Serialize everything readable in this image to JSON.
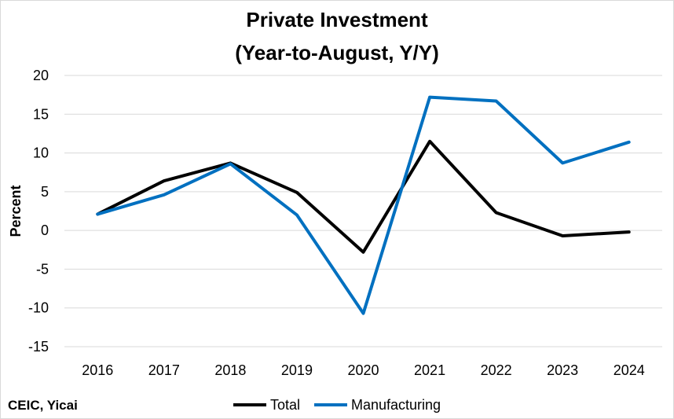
{
  "chart_data": {
    "type": "line",
    "title": [
      "Private Investment",
      "(Year-to-August, Y/Y)"
    ],
    "ylabel": "Percent",
    "xlabel": "",
    "x": [
      "2016",
      "2017",
      "2018",
      "2019",
      "2020",
      "2021",
      "2022",
      "2023",
      "2024"
    ],
    "ylim": [
      -15,
      20
    ],
    "yticks": [
      "20",
      "15",
      "10",
      "5",
      "0",
      "-5",
      "-10",
      "-15"
    ],
    "ytick_values": [
      20,
      15,
      10,
      5,
      0,
      -5,
      -10,
      -15
    ],
    "grid": true,
    "legend_position": "bottom",
    "series": [
      {
        "name": "Total",
        "color": "#000000",
        "values": [
          2.1,
          6.4,
          8.7,
          4.9,
          -2.8,
          11.5,
          2.3,
          -0.7,
          -0.2
        ]
      },
      {
        "name": "Manufacturing",
        "color": "#0070c0",
        "values": [
          2.1,
          4.6,
          8.6,
          2.0,
          -10.7,
          17.2,
          16.7,
          8.7,
          11.4
        ]
      }
    ],
    "source": "CEIC, Yicai"
  }
}
